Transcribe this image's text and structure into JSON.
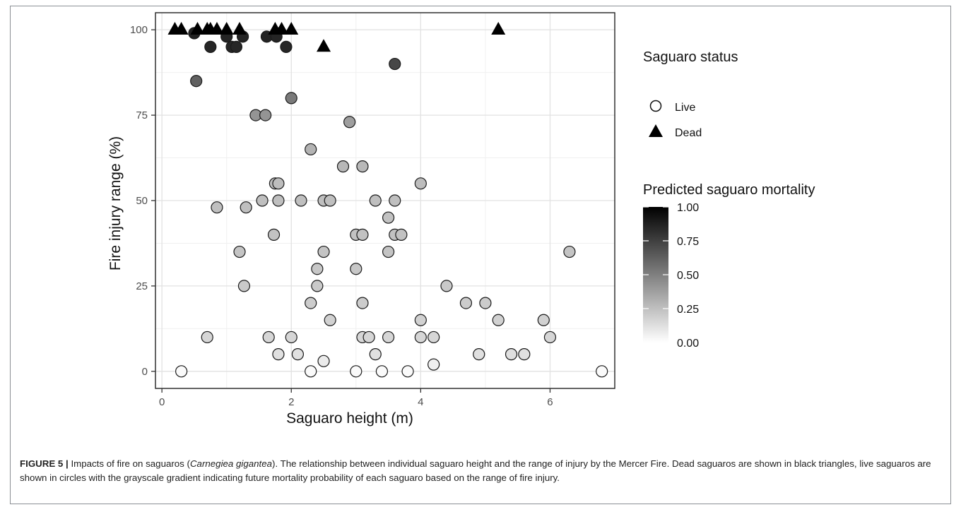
{
  "caption": {
    "label": "FIGURE 5 |",
    "part1": " Impacts of fire on saguaros (",
    "species": "Carnegiea gigantea",
    "part2": "). The relationship between individual saguaro height and the range of injury by the Mercer Fire. Dead saguaros are shown in black triangles, live saguaros are shown in circles with the grayscale gradient indicating future mortality probability of each saguaro based on the range of fire injury."
  },
  "chart_data": {
    "type": "scatter",
    "title": "",
    "xlabel": "Saguaro height (m)",
    "ylabel": "Fire injury range (%)",
    "xlim": [
      -0.1,
      7.0
    ],
    "ylim": [
      -5,
      105
    ],
    "xticks": [
      0,
      2,
      4,
      6
    ],
    "yticks": [
      0,
      25,
      50,
      75,
      100
    ],
    "grid": true,
    "legend_position": "right",
    "legend_shape": {
      "title": "Saguaro status",
      "entries": [
        {
          "label": "Live",
          "shape": "circle"
        },
        {
          "label": "Dead",
          "shape": "triangle"
        }
      ]
    },
    "legend_color": {
      "title": "Predicted saguaro mortality",
      "scale": "grayscale white-to-black",
      "ticks": [
        "1.00",
        "0.75",
        "0.50",
        "0.25",
        "0.00"
      ]
    },
    "series": [
      {
        "name": "Live",
        "shape": "circle",
        "points": [
          {
            "x": 0.5,
            "y": 99,
            "p": 0.87
          },
          {
            "x": 1.0,
            "y": 98,
            "p": 0.86
          },
          {
            "x": 1.25,
            "y": 98,
            "p": 0.86
          },
          {
            "x": 1.62,
            "y": 98,
            "p": 0.86
          },
          {
            "x": 1.77,
            "y": 98,
            "p": 0.86
          },
          {
            "x": 0.75,
            "y": 95,
            "p": 0.85
          },
          {
            "x": 1.08,
            "y": 95,
            "p": 0.85
          },
          {
            "x": 1.15,
            "y": 95,
            "p": 0.85
          },
          {
            "x": 1.92,
            "y": 95,
            "p": 0.85
          },
          {
            "x": 3.6,
            "y": 90,
            "p": 0.72
          },
          {
            "x": 0.53,
            "y": 85,
            "p": 0.62
          },
          {
            "x": 2.0,
            "y": 80,
            "p": 0.52
          },
          {
            "x": 1.45,
            "y": 75,
            "p": 0.42
          },
          {
            "x": 1.6,
            "y": 75,
            "p": 0.42
          },
          {
            "x": 2.9,
            "y": 73,
            "p": 0.38
          },
          {
            "x": 2.3,
            "y": 65,
            "p": 0.3
          },
          {
            "x": 2.8,
            "y": 60,
            "p": 0.28
          },
          {
            "x": 3.1,
            "y": 60,
            "p": 0.28
          },
          {
            "x": 1.75,
            "y": 55,
            "p": 0.26
          },
          {
            "x": 1.8,
            "y": 55,
            "p": 0.26
          },
          {
            "x": 4.0,
            "y": 55,
            "p": 0.26
          },
          {
            "x": 0.85,
            "y": 48,
            "p": 0.25
          },
          {
            "x": 1.3,
            "y": 48,
            "p": 0.25
          },
          {
            "x": 1.55,
            "y": 50,
            "p": 0.25
          },
          {
            "x": 1.8,
            "y": 50,
            "p": 0.25
          },
          {
            "x": 2.15,
            "y": 50,
            "p": 0.25
          },
          {
            "x": 2.5,
            "y": 50,
            "p": 0.25
          },
          {
            "x": 2.6,
            "y": 50,
            "p": 0.25
          },
          {
            "x": 3.3,
            "y": 50,
            "p": 0.25
          },
          {
            "x": 3.6,
            "y": 50,
            "p": 0.25
          },
          {
            "x": 3.5,
            "y": 45,
            "p": 0.24
          },
          {
            "x": 1.73,
            "y": 40,
            "p": 0.24
          },
          {
            "x": 3.0,
            "y": 40,
            "p": 0.24
          },
          {
            "x": 3.1,
            "y": 40,
            "p": 0.24
          },
          {
            "x": 3.6,
            "y": 40,
            "p": 0.24
          },
          {
            "x": 3.7,
            "y": 40,
            "p": 0.24
          },
          {
            "x": 1.2,
            "y": 35,
            "p": 0.23
          },
          {
            "x": 2.5,
            "y": 35,
            "p": 0.23
          },
          {
            "x": 3.5,
            "y": 35,
            "p": 0.23
          },
          {
            "x": 6.3,
            "y": 35,
            "p": 0.23
          },
          {
            "x": 2.4,
            "y": 30,
            "p": 0.22
          },
          {
            "x": 3.0,
            "y": 30,
            "p": 0.22
          },
          {
            "x": 1.27,
            "y": 25,
            "p": 0.21
          },
          {
            "x": 2.4,
            "y": 25,
            "p": 0.21
          },
          {
            "x": 4.4,
            "y": 25,
            "p": 0.21
          },
          {
            "x": 2.3,
            "y": 20,
            "p": 0.2
          },
          {
            "x": 3.1,
            "y": 20,
            "p": 0.2
          },
          {
            "x": 4.7,
            "y": 20,
            "p": 0.2
          },
          {
            "x": 5.0,
            "y": 20,
            "p": 0.2
          },
          {
            "x": 2.6,
            "y": 15,
            "p": 0.18
          },
          {
            "x": 4.0,
            "y": 15,
            "p": 0.18
          },
          {
            "x": 5.2,
            "y": 15,
            "p": 0.18
          },
          {
            "x": 5.9,
            "y": 15,
            "p": 0.18
          },
          {
            "x": 0.7,
            "y": 10,
            "p": 0.16
          },
          {
            "x": 1.65,
            "y": 10,
            "p": 0.16
          },
          {
            "x": 2.0,
            "y": 10,
            "p": 0.16
          },
          {
            "x": 3.1,
            "y": 10,
            "p": 0.16
          },
          {
            "x": 3.2,
            "y": 10,
            "p": 0.16
          },
          {
            "x": 3.5,
            "y": 10,
            "p": 0.16
          },
          {
            "x": 4.0,
            "y": 10,
            "p": 0.16
          },
          {
            "x": 4.2,
            "y": 10,
            "p": 0.16
          },
          {
            "x": 6.0,
            "y": 10,
            "p": 0.16
          },
          {
            "x": 1.8,
            "y": 5,
            "p": 0.12
          },
          {
            "x": 2.1,
            "y": 5,
            "p": 0.12
          },
          {
            "x": 3.3,
            "y": 5,
            "p": 0.12
          },
          {
            "x": 4.9,
            "y": 5,
            "p": 0.12
          },
          {
            "x": 5.4,
            "y": 5,
            "p": 0.12
          },
          {
            "x": 5.6,
            "y": 5,
            "p": 0.12
          },
          {
            "x": 2.5,
            "y": 3,
            "p": 0.08
          },
          {
            "x": 4.2,
            "y": 2,
            "p": 0.06
          },
          {
            "x": 0.3,
            "y": 0,
            "p": 0.02
          },
          {
            "x": 2.3,
            "y": 0,
            "p": 0.02
          },
          {
            "x": 3.0,
            "y": 0,
            "p": 0.02
          },
          {
            "x": 3.4,
            "y": 0,
            "p": 0.02
          },
          {
            "x": 3.8,
            "y": 0,
            "p": 0.02
          },
          {
            "x": 6.8,
            "y": 0,
            "p": 0.02
          }
        ]
      },
      {
        "name": "Dead",
        "shape": "triangle",
        "points": [
          {
            "x": 0.2,
            "y": 100
          },
          {
            "x": 0.3,
            "y": 100
          },
          {
            "x": 0.55,
            "y": 100
          },
          {
            "x": 0.7,
            "y": 100
          },
          {
            "x": 0.75,
            "y": 100
          },
          {
            "x": 0.85,
            "y": 100
          },
          {
            "x": 1.0,
            "y": 100
          },
          {
            "x": 1.2,
            "y": 100
          },
          {
            "x": 1.75,
            "y": 100
          },
          {
            "x": 1.85,
            "y": 100
          },
          {
            "x": 2.0,
            "y": 100
          },
          {
            "x": 2.5,
            "y": 95
          },
          {
            "x": 5.2,
            "y": 100
          }
        ]
      }
    ]
  }
}
